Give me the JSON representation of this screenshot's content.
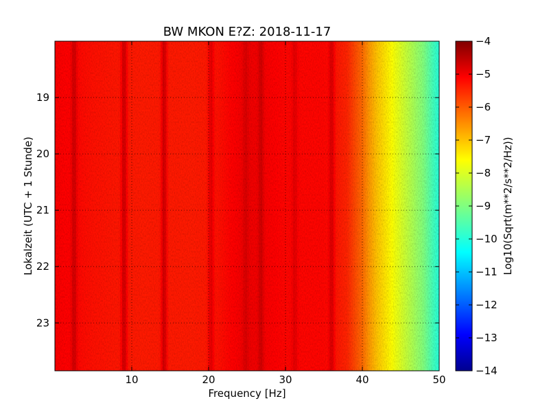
{
  "chart_data": {
    "type": "heatmap",
    "title": "BW MKON E?Z: 2018-11-17",
    "xlabel": "Frequency [Hz]",
    "ylabel": "Lokalzeit (UTC + 1 Stunde)",
    "colorbar_label": "Log10(Sqrt(m**2/s**2/Hz))",
    "xlim": [
      0,
      50
    ],
    "ylim": [
      23.85,
      18.0
    ],
    "xticks": [
      10,
      20,
      30,
      40,
      50
    ],
    "yticks": [
      19,
      20,
      21,
      22,
      23
    ],
    "colorbar_range": [
      -14,
      -4
    ],
    "colorbar_ticks": [
      -4,
      -5,
      -6,
      -7,
      -8,
      -9,
      -10,
      -11,
      -12,
      -13,
      -14
    ],
    "colormap": "jet",
    "grid": true,
    "profile": {
      "frequency_hz": [
        0,
        5,
        10,
        15,
        20,
        25,
        30,
        35,
        38,
        40,
        41,
        42,
        43,
        44,
        45,
        46,
        47,
        48,
        49,
        50
      ],
      "log_amplitude": [
        -5.2,
        -5.4,
        -5.5,
        -5.5,
        -5.5,
        -5.1,
        -5.3,
        -5.3,
        -5.6,
        -6.3,
        -6.8,
        -7.2,
        -7.5,
        -7.8,
        -8.1,
        -8.4,
        -8.7,
        -9.0,
        -9.5,
        -9.9
      ]
    },
    "peaks": [
      {
        "frequency_hz": 2.5,
        "log_amplitude": -4.8
      },
      {
        "frequency_hz": 9.0,
        "log_amplitude": -4.8
      },
      {
        "frequency_hz": 14.2,
        "log_amplitude": -4.8
      },
      {
        "frequency_hz": 20.3,
        "log_amplitude": -5.0
      },
      {
        "frequency_hz": 24.8,
        "log_amplitude": -4.9
      },
      {
        "frequency_hz": 26.8,
        "log_amplitude": -4.8
      },
      {
        "frequency_hz": 31.2,
        "log_amplitude": -5.0
      },
      {
        "frequency_hz": 36.0,
        "log_amplitude": -4.9
      }
    ]
  }
}
